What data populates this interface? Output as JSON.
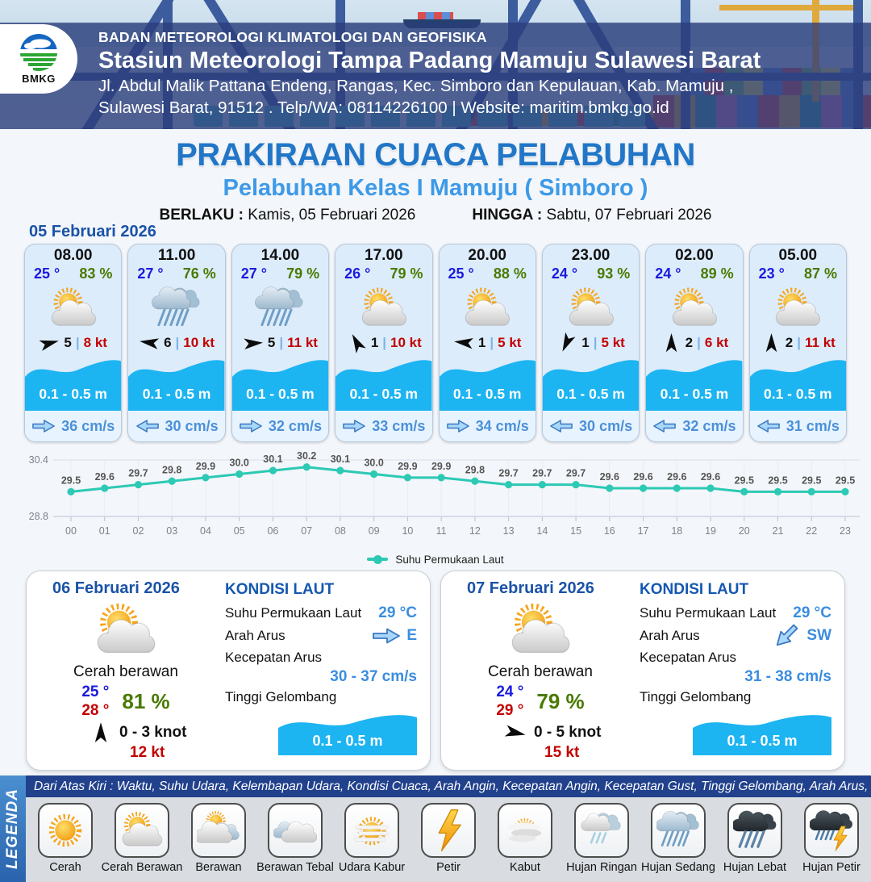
{
  "colors": {
    "accent_blue": "#2176c7",
    "subtitle_blue": "#3d9ae8",
    "dark_blue": "#1a52a8",
    "temp_blue": "#1a1ae0",
    "humidity_green": "#4a7a00",
    "gust_red": "#c40000",
    "wave_blue": "#1db4f2",
    "current_blue": "#4a90d9",
    "chart_teal": "#2cc9b4"
  },
  "header": {
    "logo_text": "BMKG",
    "line1": "BADAN METEOROLOGI KLIMATOLOGI DAN GEOFISIKA",
    "line2": "Stasiun Meteorologi Tampa Padang Mamuju Sulawesi Barat",
    "line3": "Jl. Abdul Malik Pattana Endeng, Rangas, Kec. Simboro dan Kepulauan, Kab. Mamuju ,",
    "line4": "Sulawesi Barat, 91512 . Telp/WA: 08114226100 | Website: maritim.bmkg.go.id"
  },
  "title": {
    "main": "PRAKIRAAN CUACA PELABUHAN",
    "sub": "Pelabuhan Kelas I Mamuju ( Simboro )",
    "berlaku_label": "BERLAKU :",
    "berlaku_value": "Kamis, 05 Februari 2026",
    "hingga_label": "HINGGA :",
    "hingga_value": "Sabtu, 07 Februari 2026"
  },
  "forecast": {
    "date": "05 Februari 2026",
    "cards": [
      {
        "time": "08.00",
        "temp": "25 °",
        "humidity": "83 %",
        "icon": "cerah-berawan",
        "wind_deg": -15,
        "wind_speed": "5",
        "gust": "8 kt",
        "wave": "0.1 - 0.5 m",
        "current_dir": "right",
        "current": "36 cm/s"
      },
      {
        "time": "11.00",
        "temp": "27 °",
        "humidity": "76 %",
        "icon": "hujan-sedang",
        "wind_deg": 188,
        "wind_speed": "6",
        "gust": "10 kt",
        "wave": "0.1 - 0.5 m",
        "current_dir": "left",
        "current": "30 cm/s"
      },
      {
        "time": "14.00",
        "temp": "27 °",
        "humidity": "79 %",
        "icon": "hujan-sedang",
        "wind_deg": -4,
        "wind_speed": "5",
        "gust": "11 kt",
        "wave": "0.1 - 0.5 m",
        "current_dir": "right",
        "current": "32 cm/s"
      },
      {
        "time": "17.00",
        "temp": "26 °",
        "humidity": "79 %",
        "icon": "cerah-berawan",
        "wind_deg": -118,
        "wind_speed": "1",
        "gust": "10 kt",
        "wave": "0.1 - 0.5 m",
        "current_dir": "right",
        "current": "33 cm/s"
      },
      {
        "time": "20.00",
        "temp": "25 °",
        "humidity": "88 %",
        "icon": "cerah-berawan",
        "wind_deg": 186,
        "wind_speed": "1",
        "gust": "5 kt",
        "wave": "0.1 - 0.5 m",
        "current_dir": "right",
        "current": "34 cm/s"
      },
      {
        "time": "23.00",
        "temp": "24 °",
        "humidity": "93 %",
        "icon": "cerah-berawan",
        "wind_deg": 115,
        "wind_speed": "1",
        "gust": "5 kt",
        "wave": "0.1 - 0.5 m",
        "current_dir": "left",
        "current": "30 cm/s"
      },
      {
        "time": "02.00",
        "temp": "24 °",
        "humidity": "89 %",
        "icon": "cerah-berawan",
        "wind_deg": -90,
        "wind_speed": "2",
        "gust": "6 kt",
        "wave": "0.1 - 0.5 m",
        "current_dir": "left",
        "current": "32 cm/s"
      },
      {
        "time": "05.00",
        "temp": "23 °",
        "humidity": "87 %",
        "icon": "cerah-berawan",
        "wind_deg": -90,
        "wind_speed": "2",
        "gust": "11 kt",
        "wave": "0.1 - 0.5 m",
        "current_dir": "left",
        "current": "31 cm/s"
      }
    ]
  },
  "chart_data": {
    "type": "line",
    "series_name": "Suhu Permukaan Laut",
    "x": [
      "00",
      "01",
      "02",
      "03",
      "04",
      "05",
      "06",
      "07",
      "08",
      "09",
      "10",
      "11",
      "12",
      "13",
      "14",
      "15",
      "16",
      "17",
      "18",
      "19",
      "20",
      "21",
      "22",
      "23"
    ],
    "values": [
      29.5,
      29.6,
      29.7,
      29.8,
      29.9,
      30.0,
      30.1,
      30.2,
      30.1,
      30.0,
      29.9,
      29.9,
      29.8,
      29.7,
      29.7,
      29.7,
      29.6,
      29.6,
      29.6,
      29.6,
      29.5,
      29.5,
      29.5,
      29.5
    ],
    "ylim": [
      28.8,
      30.4
    ],
    "y_ticks": [
      "30.4",
      "28.8"
    ],
    "line_color": "#2cc9b4",
    "grid": true,
    "legend_position": "bottom",
    "xlabel": "",
    "ylabel": "",
    "title": ""
  },
  "days": [
    {
      "date": "06 Februari 2026",
      "condition": "Cerah berawan",
      "icon": "cerah-berawan",
      "temp_night": "25 °",
      "temp_day": "28 °",
      "humidity": "81 %",
      "wind_deg": -90,
      "wind_range": "0  - 3 knot",
      "gust": "12 kt",
      "sea": {
        "title": "KONDISI LAUT",
        "sst_label": "Suhu Permukaan Laut",
        "sst_value": "29 °C",
        "dir_label": "Arah Arus",
        "dir_value": "E",
        "dir_deg": 0,
        "speed_label": "Kecepatan Arus",
        "speed_value": "30  - 37 cm/s",
        "wave_label": "Tinggi Gelombang",
        "wave_value": "0.1 - 0.5 m"
      }
    },
    {
      "date": "07 Februari 2026",
      "condition": "Cerah berawan",
      "icon": "cerah-berawan",
      "temp_night": "24 °",
      "temp_day": "29 °",
      "humidity": "79 %",
      "wind_deg": 12,
      "wind_range": "0  - 5 knot",
      "gust": "15 kt",
      "sea": {
        "title": "KONDISI LAUT",
        "sst_label": "Suhu Permukaan Laut",
        "sst_value": "29 °C",
        "dir_label": "Arah Arus",
        "dir_value": "SW",
        "dir_deg": 135,
        "speed_label": "Kecepatan Arus",
        "speed_value": "31  - 38 cm/s",
        "wave_label": "Tinggi Gelombang",
        "wave_value": "0.1 - 0.5 m"
      }
    }
  ],
  "legend": {
    "title": "LEGENDA",
    "note": "Dari Atas Kiri : Waktu, Suhu Udara, Kelembapan Udara, Kondisi Cuaca, Arah Angin, Kecepatan Angin, Kecepatan Gust, Tinggi Gelombang, Arah Arus, Kecepatan Arus",
    "items": [
      {
        "label": "Cerah",
        "icon": "cerah"
      },
      {
        "label": "Cerah Berawan",
        "icon": "cerah-berawan"
      },
      {
        "label": "Berawan",
        "icon": "berawan"
      },
      {
        "label": "Berawan Tebal",
        "icon": "berawan-tebal"
      },
      {
        "label": "Udara Kabur",
        "icon": "udara-kabur"
      },
      {
        "label": "Petir",
        "icon": "petir"
      },
      {
        "label": "Kabut",
        "icon": "kabut"
      },
      {
        "label": "Hujan Ringan",
        "icon": "hujan-ringan"
      },
      {
        "label": "Hujan Sedang",
        "icon": "hujan-sedang"
      },
      {
        "label": "Hujan Lebat",
        "icon": "hujan-lebat"
      },
      {
        "label": "Hujan Petir",
        "icon": "hujan-petir"
      }
    ]
  }
}
